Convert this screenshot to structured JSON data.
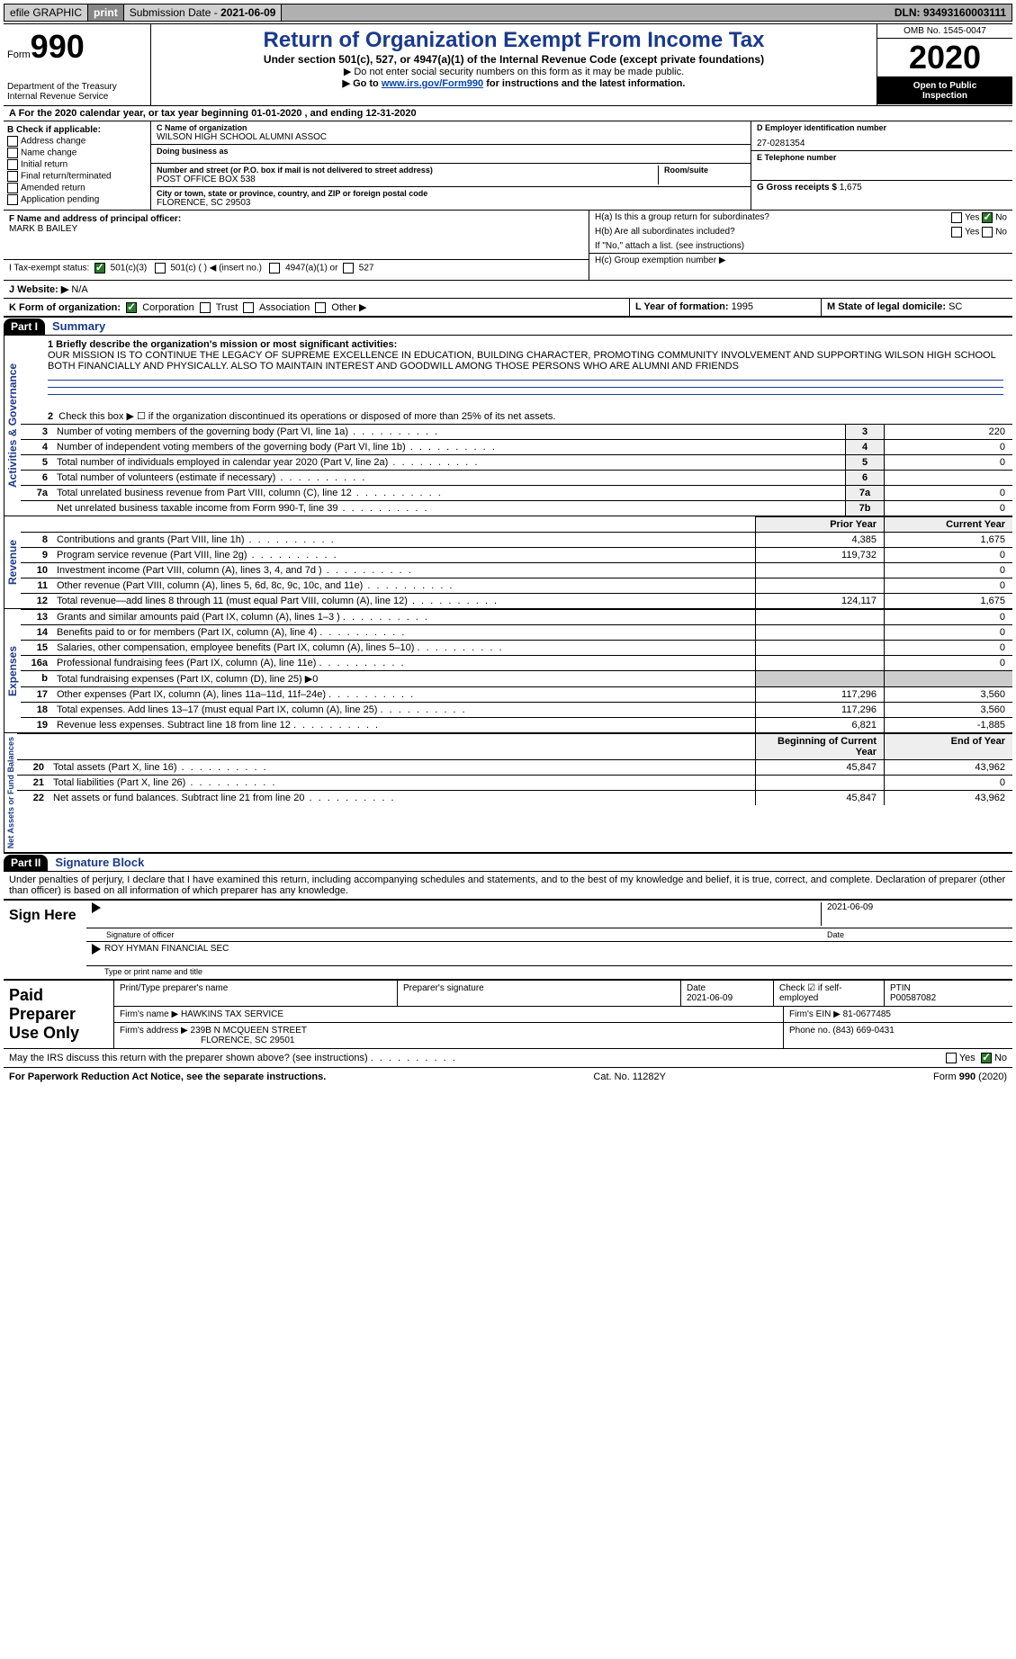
{
  "topbar": {
    "efile": "efile GRAPHIC",
    "print": "print",
    "sub_label": "Submission Date - ",
    "sub_date": "2021-06-09",
    "dln_label": "DLN: ",
    "dln": "93493160003111"
  },
  "header": {
    "form_word": "Form",
    "form_num": "990",
    "dept": "Department of the Treasury",
    "irs": "Internal Revenue Service",
    "title": "Return of Organization Exempt From Income Tax",
    "sub1": "Under section 501(c), 527, or 4947(a)(1) of the Internal Revenue Code (except private foundations)",
    "sub2": "▶ Do not enter social security numbers on this form as it may be made public.",
    "sub3_pre": "▶ Go to ",
    "sub3_link": "www.irs.gov/Form990",
    "sub3_post": " for instructions and the latest information.",
    "omb": "OMB No. 1545-0047",
    "year": "2020",
    "otp1": "Open to Public",
    "otp2": "Inspection"
  },
  "row_a": "A For the 2020 calendar year, or tax year beginning 01-01-2020   , and ending 12-31-2020",
  "box_b": {
    "title": "B Check if applicable:",
    "items": [
      "Address change",
      "Name change",
      "Initial return",
      "Final return/terminated",
      "Amended return",
      "Application pending"
    ]
  },
  "box_c": {
    "name_label": "C Name of organization",
    "name": "WILSON HIGH SCHOOL ALUMNI ASSOC",
    "dba_label": "Doing business as",
    "dba": "",
    "street_label": "Number and street (or P.O. box if mail is not delivered to street address)",
    "room_label": "Room/suite",
    "street": "POST OFFICE BOX 538",
    "city_label": "City or town, state or province, country, and ZIP or foreign postal code",
    "city": "FLORENCE, SC  29503"
  },
  "box_d": {
    "label": "D Employer identification number",
    "val": "27-0281354"
  },
  "box_e": {
    "label": "E Telephone number",
    "val": ""
  },
  "box_g": {
    "label": "G Gross receipts $ ",
    "val": "1,675"
  },
  "box_f": {
    "label": "F  Name and address of principal officer:",
    "name": "MARK B BAILEY"
  },
  "box_h": {
    "ha": "H(a)  Is this a group return for subordinates?",
    "hb": "H(b)  Are all subordinates included?",
    "hb_note": "If \"No,\" attach a list. (see instructions)",
    "hc": "H(c)  Group exemption number ▶",
    "yes": "Yes",
    "no": "No"
  },
  "row_i": {
    "label": "I   Tax-exempt status:",
    "o1": "501(c)(3)",
    "o2": "501(c) (  ) ◀ (insert no.)",
    "o3": "4947(a)(1) or",
    "o4": "527"
  },
  "row_j": {
    "label": "J   Website: ▶",
    "val": "N/A"
  },
  "row_k": {
    "label": "K Form of organization:",
    "o1": "Corporation",
    "o2": "Trust",
    "o3": "Association",
    "o4": "Other ▶"
  },
  "row_l": {
    "label": "L Year of formation: ",
    "val": "1995"
  },
  "row_m": {
    "label": "M State of legal domicile: ",
    "val": "SC"
  },
  "part1": {
    "label": "Part I",
    "title": "Summary",
    "tab_ag": "Activities & Governance",
    "tab_rev": "Revenue",
    "tab_exp": "Expenses",
    "tab_na": "Net Assets or Fund Balances",
    "l1_label": "1  Briefly describe the organization's mission or most significant activities:",
    "l1_text": "OUR MISSION IS TO CONTINUE THE LEGACY OF SUPREME EXCELLENCE IN EDUCATION, BUILDING CHARACTER, PROMOTING COMMUNITY INVOLVEMENT AND SUPPORTING WILSON HIGH SCHOOL BOTH FINANCIALLY AND PHYSICALLY. ALSO TO MAINTAIN INTEREST AND GOODWILL AMONG THOSE PERSONS WHO ARE ALUMNI AND FRIENDS",
    "l2": "Check this box ▶ ☐ if the organization discontinued its operations or disposed of more than 25% of its net assets.",
    "rows_ag": [
      {
        "n": "3",
        "d": "Number of voting members of the governing body (Part VI, line 1a)",
        "box": "3",
        "v": "220"
      },
      {
        "n": "4",
        "d": "Number of independent voting members of the governing body (Part VI, line 1b)",
        "box": "4",
        "v": "0"
      },
      {
        "n": "5",
        "d": "Total number of individuals employed in calendar year 2020 (Part V, line 2a)",
        "box": "5",
        "v": "0"
      },
      {
        "n": "6",
        "d": "Total number of volunteers (estimate if necessary)",
        "box": "6",
        "v": ""
      },
      {
        "n": "7a",
        "d": "Total unrelated business revenue from Part VIII, column (C), line 12",
        "box": "7a",
        "v": "0"
      },
      {
        "n": "",
        "d": "Net unrelated business taxable income from Form 990-T, line 39",
        "box": "7b",
        "v": "0"
      }
    ],
    "hdr_prior": "Prior Year",
    "hdr_curr": "Current Year",
    "rows_rev": [
      {
        "n": "8",
        "d": "Contributions and grants (Part VIII, line 1h)",
        "p": "4,385",
        "c": "1,675"
      },
      {
        "n": "9",
        "d": "Program service revenue (Part VIII, line 2g)",
        "p": "119,732",
        "c": "0"
      },
      {
        "n": "10",
        "d": "Investment income (Part VIII, column (A), lines 3, 4, and 7d )",
        "p": "",
        "c": "0"
      },
      {
        "n": "11",
        "d": "Other revenue (Part VIII, column (A), lines 5, 6d, 8c, 9c, 10c, and 11e)",
        "p": "",
        "c": "0"
      },
      {
        "n": "12",
        "d": "Total revenue—add lines 8 through 11 (must equal Part VIII, column (A), line 12)",
        "p": "124,117",
        "c": "1,675"
      }
    ],
    "rows_exp": [
      {
        "n": "13",
        "d": "Grants and similar amounts paid (Part IX, column (A), lines 1–3 )",
        "p": "",
        "c": "0"
      },
      {
        "n": "14",
        "d": "Benefits paid to or for members (Part IX, column (A), line 4)",
        "p": "",
        "c": "0"
      },
      {
        "n": "15",
        "d": "Salaries, other compensation, employee benefits (Part IX, column (A), lines 5–10)",
        "p": "",
        "c": "0"
      },
      {
        "n": "16a",
        "d": "Professional fundraising fees (Part IX, column (A), line 11e)",
        "p": "",
        "c": "0"
      },
      {
        "n": "b",
        "d": "Total fundraising expenses (Part IX, column (D), line 25) ▶0",
        "p": "—",
        "c": "—"
      },
      {
        "n": "17",
        "d": "Other expenses (Part IX, column (A), lines 11a–11d, 11f–24e)",
        "p": "117,296",
        "c": "3,560"
      },
      {
        "n": "18",
        "d": "Total expenses. Add lines 13–17 (must equal Part IX, column (A), line 25)",
        "p": "117,296",
        "c": "3,560"
      },
      {
        "n": "19",
        "d": "Revenue less expenses. Subtract line 18 from line 12",
        "p": "6,821",
        "c": "-1,885"
      }
    ],
    "hdr_boy": "Beginning of Current Year",
    "hdr_eoy": "End of Year",
    "rows_na": [
      {
        "n": "20",
        "d": "Total assets (Part X, line 16)",
        "p": "45,847",
        "c": "43,962"
      },
      {
        "n": "21",
        "d": "Total liabilities (Part X, line 26)",
        "p": "",
        "c": "0"
      },
      {
        "n": "22",
        "d": "Net assets or fund balances. Subtract line 21 from line 20",
        "p": "45,847",
        "c": "43,962"
      }
    ]
  },
  "part2": {
    "label": "Part II",
    "title": "Signature Block",
    "decl": "Under penalties of perjury, I declare that I have examined this return, including accompanying schedules and statements, and to the best of my knowledge and belief, it is true, correct, and complete. Declaration of preparer (other than officer) is based on all information of which preparer has any knowledge."
  },
  "sign": {
    "here": "Sign Here",
    "sig_label": "Signature of officer",
    "date_label": "Date",
    "date": "2021-06-09",
    "name": "ROY HYMAN  FINANCIAL SEC",
    "name_label": "Type or print name and title"
  },
  "prep": {
    "title": "Paid Preparer Use Only",
    "c1": "Print/Type preparer's name",
    "c2": "Preparer's signature",
    "c3": "Date",
    "c3v": "2021-06-09",
    "c4": "Check ☑ if self-employed",
    "c5": "PTIN",
    "c5v": "P00587082",
    "firm_l": "Firm's name    ▶",
    "firm": "HAWKINS TAX SERVICE",
    "ein_l": "Firm's EIN ▶ ",
    "ein": "81-0677485",
    "addr_l": "Firm's address ▶",
    "addr1": "239B N MCQUEEN STREET",
    "addr2": "FLORENCE, SC  29501",
    "phone_l": "Phone no. ",
    "phone": "(843) 669-0431"
  },
  "footer": {
    "may": "May the IRS discuss this return with the preparer shown above? (see instructions)",
    "yes": "Yes",
    "no": "No",
    "pra": "For Paperwork Reduction Act Notice, see the separate instructions.",
    "cat": "Cat. No. 11282Y",
    "form": "Form 990 (2020)"
  },
  "style": {
    "accent": "#1a3a8a",
    "check_green": "#2a7a2a"
  }
}
